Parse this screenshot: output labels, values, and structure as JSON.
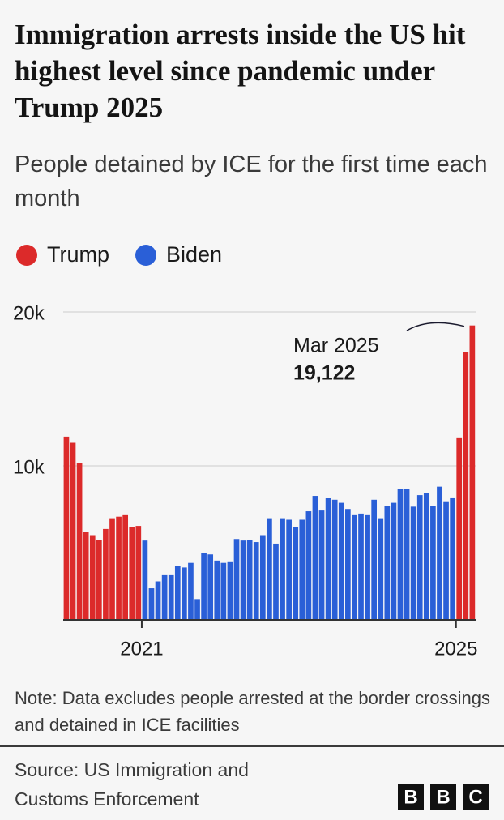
{
  "chart_data": {
    "type": "bar",
    "title": "Immigration arrests inside the US hit highest level since pandemic under Trump 2025",
    "subtitle": "People detained by ICE for the first time each month",
    "categories": [
      null,
      null,
      null,
      null,
      null,
      null,
      null,
      null,
      null,
      null,
      null,
      null,
      "2021",
      null,
      null,
      null,
      null,
      null,
      null,
      null,
      null,
      null,
      null,
      null,
      null,
      null,
      null,
      null,
      null,
      null,
      null,
      null,
      null,
      null,
      null,
      null,
      null,
      null,
      null,
      null,
      null,
      null,
      null,
      null,
      null,
      null,
      null,
      null,
      null,
      null,
      null,
      null,
      null,
      null,
      null,
      null,
      null,
      null,
      null,
      null,
      "2025",
      null,
      null
    ],
    "series": [
      {
        "name": "Trump",
        "color": "#dc2a2a",
        "values": [
          11900,
          11500,
          10200,
          5700,
          5500,
          5200,
          5900,
          6600,
          6700,
          6850,
          6050,
          6100,
          null,
          null,
          null,
          null,
          null,
          null,
          null,
          null,
          null,
          null,
          null,
          null,
          null,
          null,
          null,
          null,
          null,
          null,
          null,
          null,
          null,
          null,
          null,
          null,
          null,
          null,
          null,
          null,
          null,
          null,
          null,
          null,
          null,
          null,
          null,
          null,
          null,
          null,
          null,
          null,
          null,
          null,
          null,
          null,
          null,
          null,
          null,
          null,
          11850,
          17400,
          19122
        ]
      },
      {
        "name": "Biden",
        "color": "#2a5fd7",
        "values": [
          null,
          null,
          null,
          null,
          null,
          null,
          null,
          null,
          null,
          null,
          null,
          null,
          5150,
          2050,
          2500,
          2900,
          2900,
          3500,
          3400,
          3700,
          1350,
          4350,
          4250,
          3850,
          3700,
          3800,
          5250,
          5150,
          5200,
          5050,
          5500,
          6600,
          4950,
          6600,
          6500,
          6000,
          6500,
          7050,
          8050,
          7100,
          7900,
          7800,
          7600,
          7200,
          6850,
          6900,
          6850,
          7800,
          6600,
          7400,
          7600,
          8500,
          8500,
          7350,
          8100,
          8250,
          7400,
          8650,
          7700,
          7950,
          null,
          null,
          null
        ]
      }
    ],
    "ylim": [
      0,
      20000
    ],
    "yticks": [
      {
        "value": 10000,
        "label": "10k"
      },
      {
        "value": 20000,
        "label": "20k"
      }
    ],
    "grid": true,
    "annotation": {
      "text": "Mar 2025",
      "value": 19122,
      "label": "19,122"
    },
    "note": "Note: Data excludes people arrested at the border crossings and detained in ICE facilities",
    "source": "Source: US Immigration and Customs Enforcement",
    "logo": [
      "B",
      "B",
      "C"
    ]
  }
}
